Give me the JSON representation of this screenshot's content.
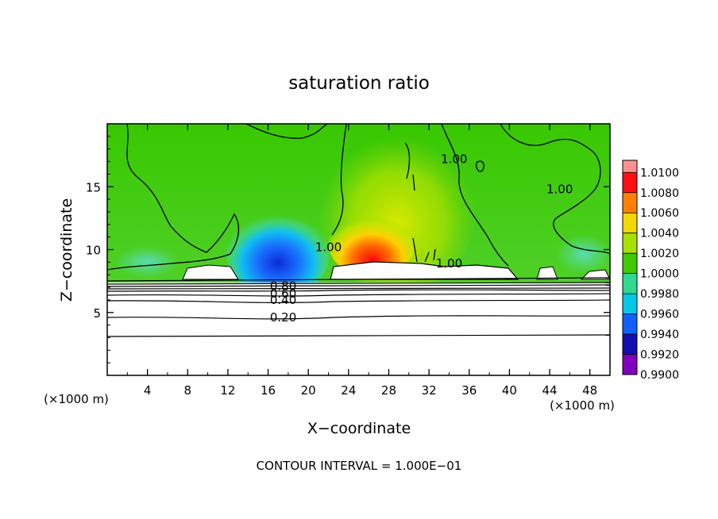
{
  "chart_data": {
    "type": "heatmap",
    "title": "saturation ratio",
    "xlabel": "X−coordinate",
    "ylabel": "Z−coordinate",
    "x_unit_left": "(×1000 m)",
    "x_unit_right": "(×1000 m)",
    "xlim": [
      0,
      50
    ],
    "ylim": [
      0,
      20
    ],
    "x_ticks": [
      4,
      8,
      12,
      16,
      20,
      24,
      28,
      32,
      36,
      40,
      44,
      48
    ],
    "x_tick_labels": [
      "4",
      "8",
      "12",
      "16",
      "20",
      "24",
      "28",
      "32",
      "36",
      "40",
      "44",
      "48"
    ],
    "y_ticks": [
      5,
      10,
      15
    ],
    "y_tick_labels": [
      "5",
      "10",
      "15"
    ],
    "colorbar": {
      "levels": [
        0.99,
        0.992,
        0.994,
        0.996,
        0.998,
        1.0,
        1.002,
        1.004,
        1.006,
        1.008,
        1.01
      ],
      "labels": [
        "0.9900",
        "0.9920",
        "0.9940",
        "0.9960",
        "0.9980",
        "1.0000",
        "1.0020",
        "1.0040",
        "1.0060",
        "1.0080",
        "1.0100"
      ],
      "colors": [
        "#8000c0",
        "#1010b0",
        "#1060ff",
        "#00c8e8",
        "#30d890",
        "#40c800",
        "#a8e000",
        "#f0d800",
        "#ff8000",
        "#ff1010",
        "#ff9090"
      ]
    },
    "contour_labels": [
      {
        "text": "0.20",
        "x": 17.5,
        "z": 4.6
      },
      {
        "text": "0.40",
        "x": 17.5,
        "z": 6.0
      },
      {
        "text": "0.60",
        "x": 17.5,
        "z": 6.5
      },
      {
        "text": "0.80",
        "x": 17.5,
        "z": 7.1
      },
      {
        "text": "1.00",
        "x": 22.0,
        "z": 10.2
      },
      {
        "text": "1.00",
        "x": 34.0,
        "z": 8.9
      },
      {
        "text": "1.00",
        "x": 34.5,
        "z": 17.2
      },
      {
        "text": "1.00",
        "x": 45.0,
        "z": 14.8
      }
    ],
    "regions": {
      "subsaturated_max": 0.998,
      "saturated_base_z": 7.5,
      "dry_layer_top_z": 7.3,
      "supersaturated_core": {
        "x": 26,
        "z": 10.3,
        "value": 1.0095
      },
      "dry_core": {
        "x": 17,
        "z": 9.3,
        "value": 0.9935
      }
    },
    "footer": "CONTOUR INTERVAL = 1.000E−01"
  }
}
